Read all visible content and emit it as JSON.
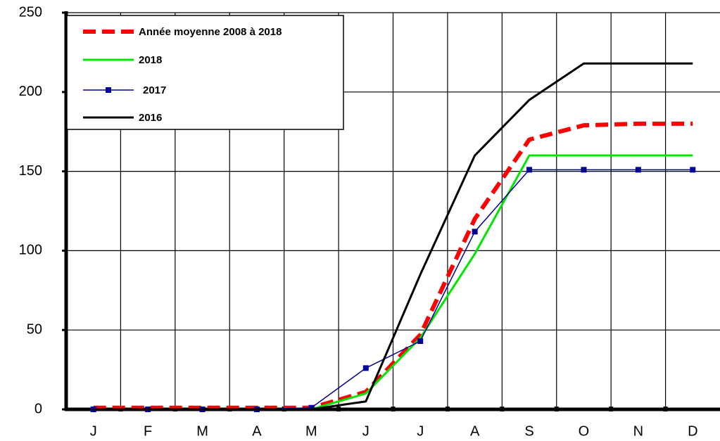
{
  "chart_data": {
    "type": "line",
    "categories": [
      "J",
      "F",
      "M",
      "A",
      "M",
      "J",
      "J",
      "A",
      "S",
      "O",
      "N",
      "D"
    ],
    "series": [
      {
        "name": "Année moyenne 2008 à 2018",
        "color": "#ff0000",
        "dash": true,
        "values": [
          1,
          1,
          1,
          1,
          1,
          11,
          47,
          120,
          170,
          179,
          180,
          180
        ]
      },
      {
        "name": "2018",
        "color": "#00e600",
        "values": [
          0,
          0,
          0,
          0,
          0,
          10,
          45,
          98,
          160,
          160,
          160,
          160
        ]
      },
      {
        "name": "2017",
        "color": "#000099",
        "marker": "square",
        "values": [
          0,
          0,
          0,
          0,
          1,
          26,
          43,
          112,
          151,
          151,
          151,
          151
        ]
      },
      {
        "name": "2016",
        "color": "#000000",
        "values": [
          0,
          0,
          0,
          0,
          0,
          5,
          85,
          160,
          195,
          218,
          218,
          218
        ]
      }
    ],
    "ylim": [
      0,
      250
    ],
    "yticks": [
      0,
      50,
      100,
      150,
      200,
      250
    ],
    "grid": true,
    "legend": "upper left"
  }
}
